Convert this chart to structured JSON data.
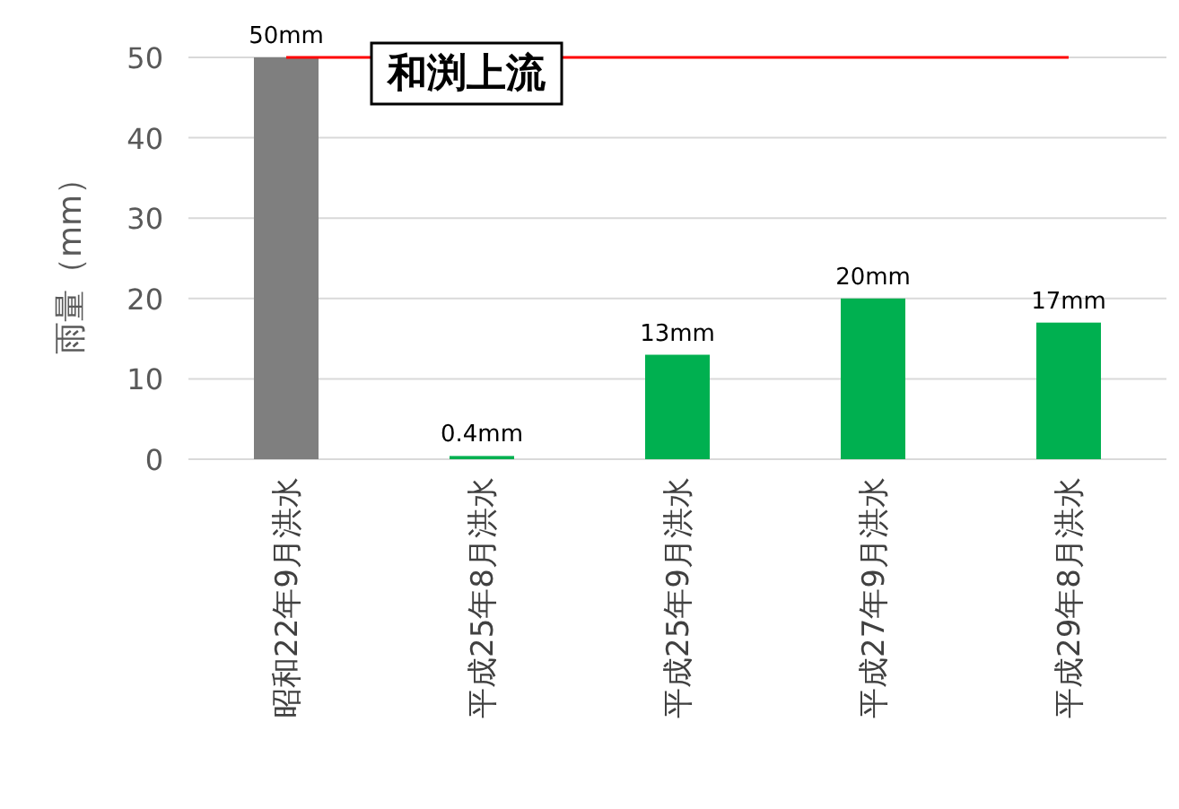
{
  "chart_data": {
    "type": "bar",
    "title": "和渕上流",
    "ylabel": "雨量（mm）",
    "categories": [
      "昭和22年9月洪水",
      "平成25年8月洪水",
      "平成25年9月洪水",
      "平成27年9月洪水",
      "平成29年8月洪水"
    ],
    "values": [
      50,
      0.4,
      13,
      20,
      17
    ],
    "colors": [
      "#7f7f7f",
      "#00b050",
      "#00b050",
      "#00b050",
      "#00b050"
    ],
    "value_labels": [
      "50mm",
      "0.4mm",
      "13mm",
      "20mm",
      "17mm"
    ],
    "ylim": [
      0,
      50
    ],
    "yticks": [
      0,
      10,
      20,
      30,
      40,
      50
    ],
    "grid": "y",
    "ref_lines": [
      {
        "axis": "y",
        "value": 50,
        "color": "#ff0000"
      }
    ]
  }
}
